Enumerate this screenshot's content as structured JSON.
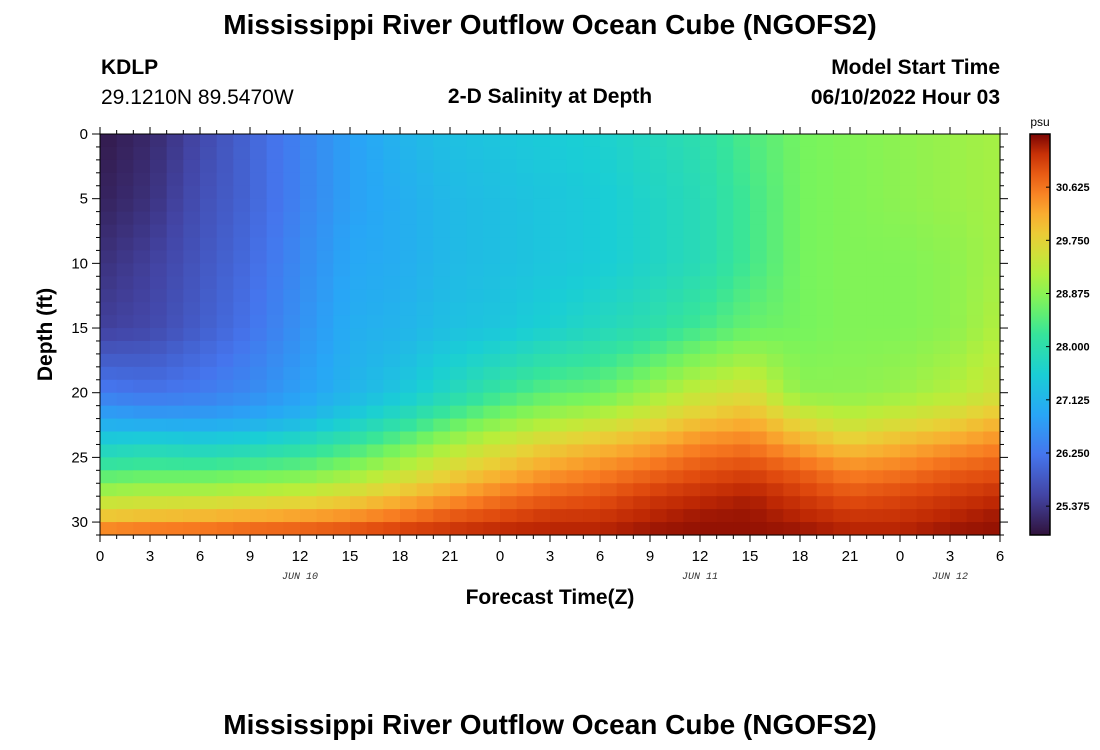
{
  "page": {
    "title": "Mississippi River Outflow Ocean Cube (NGOFS2)",
    "station_id": "KDLP",
    "station_coords": "29.1210N  89.5470W",
    "plot_subtitle": "2-D Salinity at Depth",
    "model_start_label": "Model Start Time",
    "model_start_value": "06/10/2022 Hour 03",
    "second_title": "Mississippi River Outflow Ocean Cube (NGOFS2)"
  },
  "chart_data": {
    "type": "heatmap",
    "title": "2-D Salinity at Depth",
    "xlabel": "Forecast Time(Z)",
    "ylabel": "Depth (ft)",
    "x_tick_labels": [
      "0",
      "3",
      "6",
      "9",
      "12",
      "15",
      "18",
      "21",
      "0",
      "3",
      "6",
      "9",
      "12",
      "15",
      "18",
      "21",
      "0",
      "3",
      "6"
    ],
    "date_labels": [
      {
        "label": "JUN 10",
        "at_hour": 12
      },
      {
        "label": "JUN 11",
        "at_hour": 36
      },
      {
        "label": "JUN 12",
        "at_hour": 51
      }
    ],
    "xlim": [
      0,
      54
    ],
    "y_ticks": [
      0,
      5,
      10,
      15,
      20,
      25,
      30
    ],
    "ylim": [
      0,
      31
    ],
    "y_inverted": true,
    "colorbar": {
      "unit": "psu",
      "ticks": [
        "30.625",
        "29.750",
        "28.875",
        "28.000",
        "27.125",
        "26.250",
        "25.375"
      ],
      "vmin": 24.9,
      "vmax": 31.5
    },
    "control_hours": [
      0,
      3,
      6,
      9,
      12,
      15,
      18,
      21,
      24,
      27,
      30,
      33,
      36,
      39,
      42,
      45,
      48,
      51,
      54
    ],
    "control_depths": [
      0,
      5,
      10,
      15,
      20,
      22,
      24,
      26,
      28,
      30,
      31
    ],
    "salinity_grid": [
      [
        25.0,
        25.2,
        25.6,
        26.0,
        26.4,
        26.8,
        27.1,
        27.3,
        27.4,
        27.5,
        27.6,
        27.8,
        28.0,
        28.4,
        28.7,
        28.8,
        28.9,
        29.0,
        29.1
      ],
      [
        25.1,
        25.3,
        25.7,
        26.0,
        26.4,
        26.8,
        27.0,
        27.2,
        27.3,
        27.4,
        27.5,
        27.7,
        27.9,
        28.3,
        28.7,
        28.8,
        28.9,
        29.0,
        29.1
      ],
      [
        25.3,
        25.5,
        25.8,
        26.1,
        26.5,
        26.9,
        27.0,
        27.2,
        27.3,
        27.4,
        27.5,
        27.7,
        27.9,
        28.3,
        28.7,
        28.8,
        28.8,
        28.9,
        29.1
      ],
      [
        25.5,
        25.6,
        25.9,
        26.2,
        26.6,
        27.0,
        27.1,
        27.3,
        27.4,
        27.6,
        27.8,
        28.0,
        28.3,
        28.6,
        28.7,
        28.8,
        28.8,
        28.9,
        29.2
      ],
      [
        26.3,
        26.2,
        26.3,
        26.5,
        26.8,
        27.1,
        27.4,
        27.8,
        28.2,
        28.5,
        28.6,
        29.0,
        29.4,
        29.6,
        28.9,
        28.9,
        29.0,
        29.2,
        29.5
      ],
      [
        26.9,
        26.8,
        26.8,
        26.9,
        27.1,
        27.5,
        27.9,
        28.4,
        28.8,
        29.1,
        29.3,
        29.6,
        29.9,
        30.1,
        29.6,
        29.3,
        29.5,
        29.7,
        30.0
      ],
      [
        27.6,
        27.7,
        27.6,
        27.7,
        27.9,
        28.2,
        28.6,
        29.1,
        29.5,
        29.8,
        30.0,
        30.2,
        30.5,
        30.6,
        30.2,
        29.9,
        30.1,
        30.3,
        30.5
      ],
      [
        28.3,
        28.4,
        28.4,
        28.5,
        28.6,
        28.9,
        29.3,
        29.7,
        30.0,
        30.3,
        30.5,
        30.7,
        30.9,
        31.0,
        30.8,
        30.5,
        30.6,
        30.8,
        30.9
      ],
      [
        29.2,
        29.3,
        29.3,
        29.4,
        29.5,
        29.7,
        30.0,
        30.3,
        30.6,
        30.8,
        30.9,
        31.1,
        31.2,
        31.3,
        31.1,
        30.9,
        31.0,
        31.1,
        31.2
      ],
      [
        30.1,
        30.2,
        30.3,
        30.4,
        30.5,
        30.6,
        30.8,
        31.0,
        31.1,
        31.2,
        31.2,
        31.3,
        31.4,
        31.4,
        31.3,
        31.2,
        31.2,
        31.3,
        31.4
      ],
      [
        30.8,
        30.9,
        30.9,
        31.0,
        31.0,
        31.1,
        31.2,
        31.2,
        31.3,
        31.3,
        31.3,
        31.4,
        31.4,
        31.4,
        31.4,
        31.3,
        31.3,
        31.4,
        31.4
      ]
    ]
  }
}
